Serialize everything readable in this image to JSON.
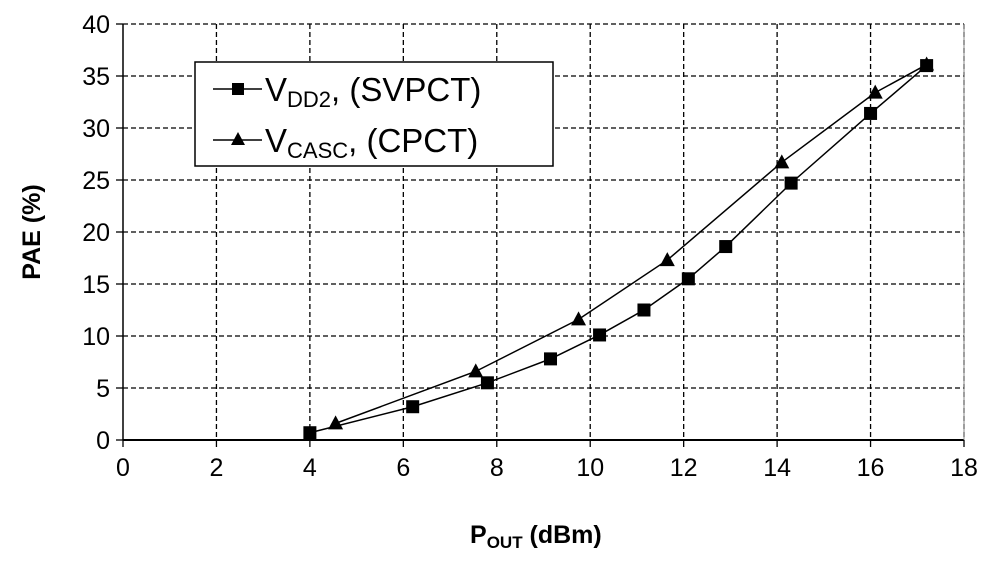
{
  "chart_data": {
    "type": "line",
    "title": "",
    "xlabel": {
      "main": "P",
      "sub": "OUT",
      "rest": " (dBm)"
    },
    "ylabel": "PAE (%)",
    "xlim": [
      0,
      18
    ],
    "ylim": [
      0,
      40
    ],
    "xticks": [
      "0",
      "2",
      "4",
      "6",
      "8",
      "10",
      "12",
      "14",
      "16",
      "18"
    ],
    "yticks": [
      "0",
      "5",
      "10",
      "15",
      "20",
      "25",
      "30",
      "35",
      "40"
    ],
    "grid": true,
    "legend_position": "top-left",
    "series": [
      {
        "name": "VDD2, (SVPCT)",
        "label": {
          "main": "V",
          "sub": "DD2",
          "rest": ", (SVPCT)"
        },
        "marker": "square",
        "x": [
          4.0,
          6.2,
          7.8,
          9.15,
          10.2,
          11.15,
          12.1,
          12.9,
          14.3,
          16.0,
          17.2
        ],
        "y": [
          0.7,
          3.2,
          5.5,
          7.8,
          10.1,
          12.5,
          15.5,
          18.6,
          24.7,
          31.4,
          36.0
        ]
      },
      {
        "name": "VCASC, (CPCT)",
        "label": {
          "main": "V",
          "sub": "CASC",
          "rest": ", (CPCT)"
        },
        "marker": "triangle",
        "x": [
          4.55,
          7.55,
          9.75,
          11.65,
          14.1,
          16.1,
          17.2
        ],
        "y": [
          1.6,
          6.6,
          11.6,
          17.3,
          26.7,
          33.4,
          36.1
        ]
      }
    ]
  }
}
